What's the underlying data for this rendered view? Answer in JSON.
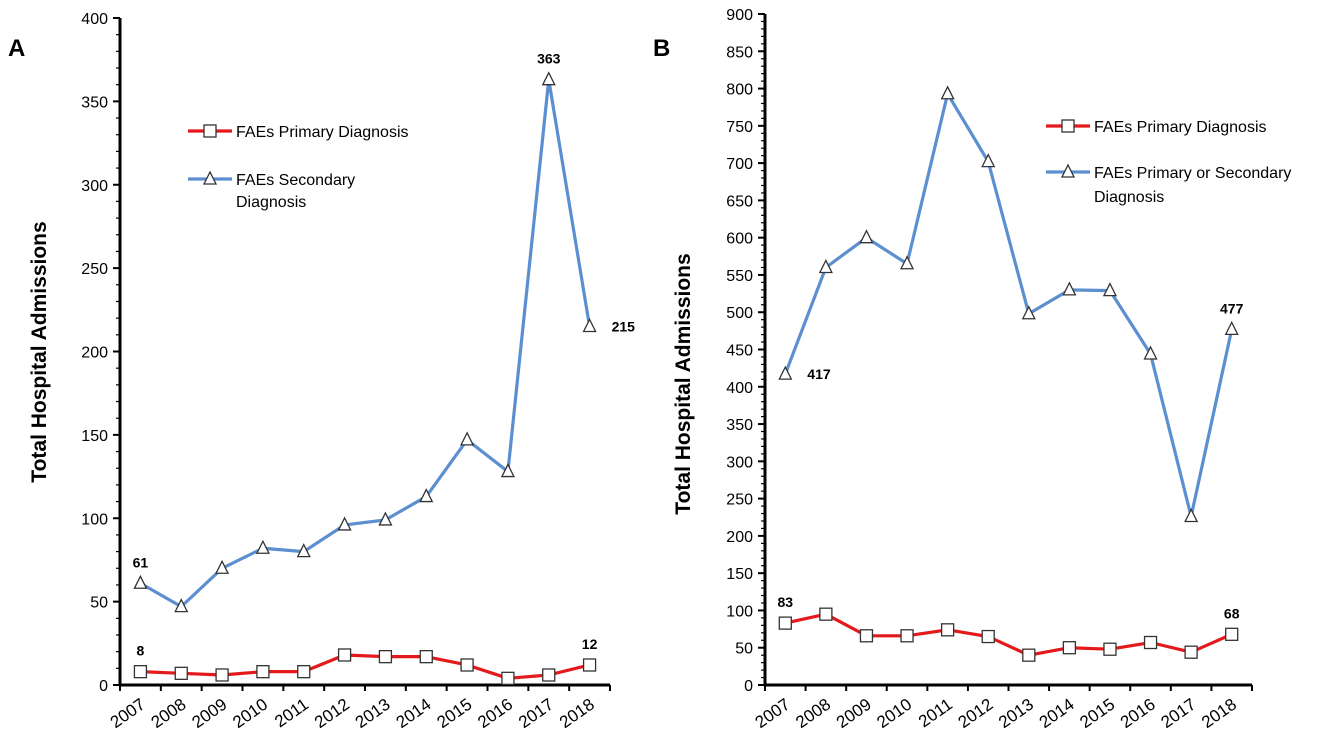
{
  "chart_data": [
    {
      "type": "line",
      "panel_label": "A",
      "ylabel": "Total  Hospital Admissions",
      "xlabel": "",
      "categories": [
        "2007",
        "2008",
        "2009",
        "2010",
        "2011",
        "2012",
        "2013",
        "2014",
        "2015",
        "2016",
        "2017",
        "2018"
      ],
      "ylim": [
        0,
        400
      ],
      "ymajor": 50,
      "yticks": [
        "0",
        "50",
        "100",
        "150",
        "200",
        "250",
        "300",
        "350",
        "400"
      ],
      "grid": false,
      "legend_placement": "upper-center",
      "series": [
        {
          "name": "FAEs Primary Diagnosis",
          "legend_lines": [
            "FAEs Primary Diagnosis"
          ],
          "color": "#e3191c",
          "marker": "square",
          "values": [
            8,
            7,
            6,
            8,
            8,
            18,
            17,
            17,
            12,
            4,
            6,
            12
          ]
        },
        {
          "name": "FAEs Secondary Diagnosis",
          "legend_lines": [
            "FAEs Secondary",
            "Diagnosis"
          ],
          "color": "#5b8fd0",
          "marker": "triangle",
          "values": [
            61,
            47,
            70,
            82,
            80,
            96,
            99,
            113,
            147,
            128,
            363,
            215
          ]
        }
      ],
      "annotations": [
        {
          "text": "61",
          "series": 1,
          "index": 0,
          "position": "above"
        },
        {
          "text": "363",
          "series": 1,
          "index": 10,
          "position": "above"
        },
        {
          "text": "215",
          "series": 1,
          "index": 11,
          "position": "right"
        },
        {
          "text": "8",
          "series": 0,
          "index": 0,
          "position": "above"
        },
        {
          "text": "12",
          "series": 0,
          "index": 11,
          "position": "above"
        }
      ]
    },
    {
      "type": "line",
      "panel_label": "B",
      "ylabel": "Total  Hospital Admissions",
      "xlabel": "",
      "categories": [
        "2007",
        "2008",
        "2009",
        "2010",
        "2011",
        "2012",
        "2013",
        "2014",
        "2015",
        "2016",
        "2017",
        "2018"
      ],
      "ylim": [
        0,
        900
      ],
      "ymajor": 50,
      "yticks": [
        "0",
        "50",
        "100",
        "150",
        "200",
        "250",
        "300",
        "350",
        "400",
        "450",
        "500",
        "550",
        "600",
        "650",
        "700",
        "750",
        "800",
        "850",
        "900"
      ],
      "grid": false,
      "legend_placement": "upper-right",
      "series": [
        {
          "name": "FAEs Primary Diagnosis",
          "legend_lines": [
            "FAEs Primary Diagnosis"
          ],
          "color": "#e3191c",
          "marker": "square",
          "values": [
            83,
            95,
            66,
            66,
            74,
            65,
            40,
            50,
            48,
            57,
            44,
            68
          ]
        },
        {
          "name": "FAEs Primary or Secondary Diagnosis",
          "legend_lines": [
            "FAEs Primary or Secondary",
            "Diagnosis"
          ],
          "color": "#5b8fd0",
          "marker": "triangle",
          "values": [
            417,
            560,
            600,
            565,
            793,
            702,
            498,
            530,
            529,
            444,
            226,
            477
          ]
        }
      ],
      "annotations": [
        {
          "text": "417",
          "series": 1,
          "index": 0,
          "position": "right"
        },
        {
          "text": "477",
          "series": 1,
          "index": 11,
          "position": "above"
        },
        {
          "text": "83",
          "series": 0,
          "index": 0,
          "position": "above"
        },
        {
          "text": "68",
          "series": 0,
          "index": 11,
          "position": "above"
        }
      ]
    }
  ]
}
